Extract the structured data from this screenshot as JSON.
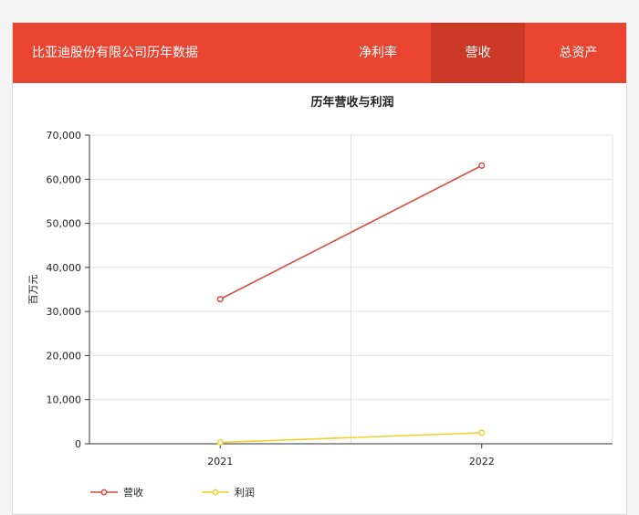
{
  "header": {
    "title": "比亚迪股份有限公司历年数据",
    "tabs": [
      {
        "label": "净利率",
        "active": false
      },
      {
        "label": "营收",
        "active": true
      },
      {
        "label": "总资产",
        "active": false
      }
    ]
  },
  "colors": {
    "header_bg": "#e84430",
    "active_tab": "#cc3826",
    "revenue": "#d9483b",
    "profit": "#f2cf2b"
  },
  "chart_data": {
    "type": "line",
    "title": "历年营收与利润",
    "ylabel": "百万元",
    "xlabel": "",
    "categories": [
      "2021",
      "2022"
    ],
    "yticks": [
      "0",
      "10,000",
      "20,000",
      "30,000",
      "40,000",
      "50,000",
      "60,000",
      "70,000"
    ],
    "ylim": [
      0,
      70000
    ],
    "grid": true,
    "legend_position": "bottom-left",
    "series": [
      {
        "name": "营收",
        "values": [
          32800,
          63100
        ],
        "color": "#d9483b"
      },
      {
        "name": "利润",
        "values": [
          300,
          2500
        ],
        "color": "#f2cf2b"
      }
    ]
  }
}
